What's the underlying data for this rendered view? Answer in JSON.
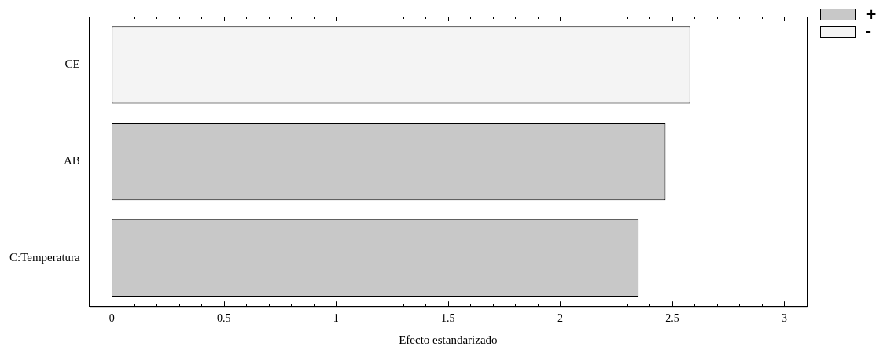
{
  "chart_data": {
    "type": "bar",
    "orientation": "horizontal",
    "xlabel": "Efecto estandarizado",
    "categories": [
      "CE",
      "AB",
      "C:Temperatura"
    ],
    "series": [
      {
        "name": "+",
        "color": "#c8c8c8",
        "values": [
          null,
          2.47,
          2.35
        ]
      },
      {
        "name": "-",
        "color": "#f4f4f4",
        "values": [
          2.58,
          null,
          null
        ]
      }
    ],
    "xlim": [
      -0.1,
      3.1
    ],
    "xticks": [
      0,
      {
        "value": 0.1,
        "label": null
      },
      {
        "value": 0.2,
        "label": null
      },
      {
        "value": 0.3,
        "label": null
      },
      {
        "value": 0.4,
        "label": null
      },
      {
        "value": 0.5,
        "label": "0.5"
      },
      {
        "value": 0.6,
        "label": null
      },
      {
        "value": 0.7,
        "label": null
      },
      {
        "value": 0.8,
        "label": null
      },
      {
        "value": 0.9,
        "label": null
      },
      1,
      {
        "value": 1.1,
        "label": null
      },
      {
        "value": 1.2,
        "label": null
      },
      {
        "value": 1.3,
        "label": null
      },
      {
        "value": 1.4,
        "label": null
      },
      {
        "value": 1.5,
        "label": "1.5"
      },
      {
        "value": 1.6,
        "label": null
      },
      {
        "value": 1.7,
        "label": null
      },
      {
        "value": 1.8,
        "label": null
      },
      {
        "value": 1.9,
        "label": null
      },
      2,
      {
        "value": 2.1,
        "label": null
      },
      {
        "value": 2.2,
        "label": null
      },
      {
        "value": 2.3,
        "label": null
      },
      {
        "value": 2.4,
        "label": null
      },
      {
        "value": 2.5,
        "label": "2.5"
      },
      {
        "value": 2.6,
        "label": null
      },
      {
        "value": 2.7,
        "label": null
      },
      {
        "value": 2.8,
        "label": null
      },
      {
        "value": 2.9,
        "label": null
      },
      3
    ],
    "ref_lines": [
      {
        "axis": "x",
        "value": 2.05,
        "line_style": "dashed",
        "color": "#000000"
      }
    ],
    "grid": false,
    "legend": "top right"
  }
}
